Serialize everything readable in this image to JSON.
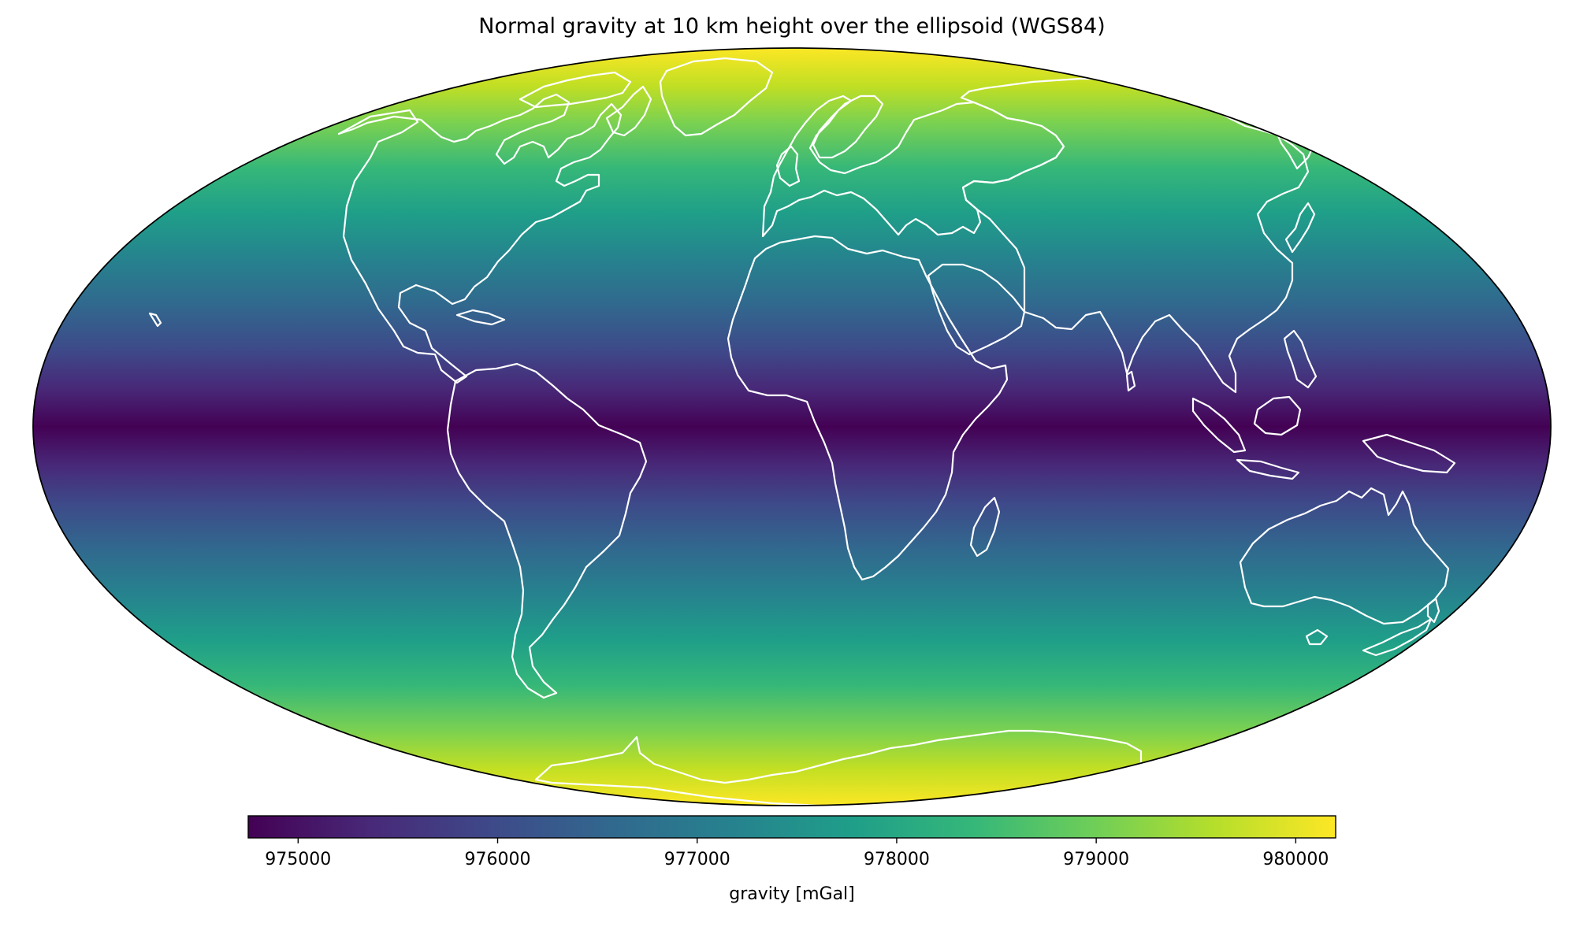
{
  "title": "Normal gravity at 10 km height over the ellipsoid (WGS84)",
  "map": {
    "projection": "mollweide",
    "colormap": "viridis",
    "coastline_color": "#ffffff",
    "outline_color": "#000000",
    "field": "normal gravity",
    "min_value_at": "equator",
    "max_value_at": "poles"
  },
  "colorbar": {
    "label": "gravity [mGal]",
    "orientation": "horizontal",
    "placement": "bottom",
    "range": [
      974750,
      980200
    ],
    "ticks": [
      975000,
      976000,
      977000,
      978000,
      979000,
      980000
    ],
    "tick_labels": [
      "975000",
      "976000",
      "977000",
      "978000",
      "979000",
      "980000"
    ],
    "colors": [
      "#440154",
      "#482878",
      "#3e4989",
      "#31688e",
      "#26828e",
      "#1f9e89",
      "#35b779",
      "#6ece58",
      "#b5de2b",
      "#fde725"
    ]
  }
}
